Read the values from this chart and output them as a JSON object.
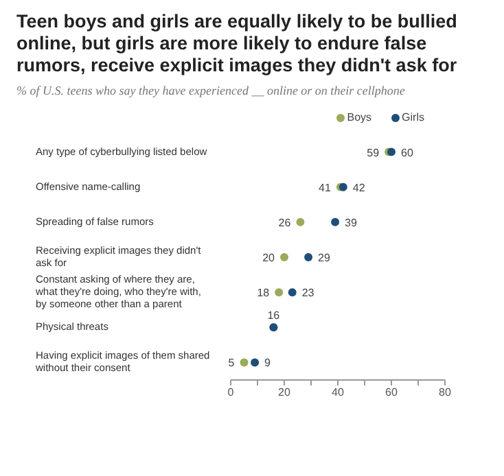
{
  "chart_data": {
    "type": "scatter",
    "title": "Teen boys and girls are equally likely to be bullied online, but girls are more likely to endure false rumors, receive explicit images they didn't ask for",
    "subtitle": "% of U.S. teens who say they have experienced __ online or on their cellphone",
    "orientation": "horizontal",
    "categories": [
      "Any type of cyberbullying listed below",
      "Offensive name-calling",
      "Spreading of false rumors",
      "Receiving explicit images they didn't ask for",
      "Constant asking of where they are, what they're doing, who they're with, by someone other than a parent",
      "Physical threats",
      "Having explicit images of them shared without their consent"
    ],
    "series": [
      {
        "name": "Boys",
        "color": "#9aab5a",
        "values": [
          59,
          41,
          26,
          20,
          18,
          16,
          5
        ],
        "value_labels": [
          "59",
          "41",
          "26",
          "20",
          "18",
          "16",
          "5"
        ]
      },
      {
        "name": "Girls",
        "color": "#1f4e79",
        "values": [
          60,
          42,
          39,
          29,
          23,
          16,
          9
        ],
        "value_labels": [
          "60",
          "42",
          "39",
          "29",
          "23",
          null,
          "9"
        ]
      }
    ],
    "xlim": [
      0,
      80
    ],
    "xticks": [
      0,
      {
        "value": 10,
        "label": null
      },
      20,
      {
        "value": 30,
        "label": null
      },
      40,
      {
        "value": 50,
        "label": null
      },
      60,
      {
        "value": 70,
        "label": null
      },
      80
    ],
    "marker": "circle",
    "legend": "top right"
  }
}
